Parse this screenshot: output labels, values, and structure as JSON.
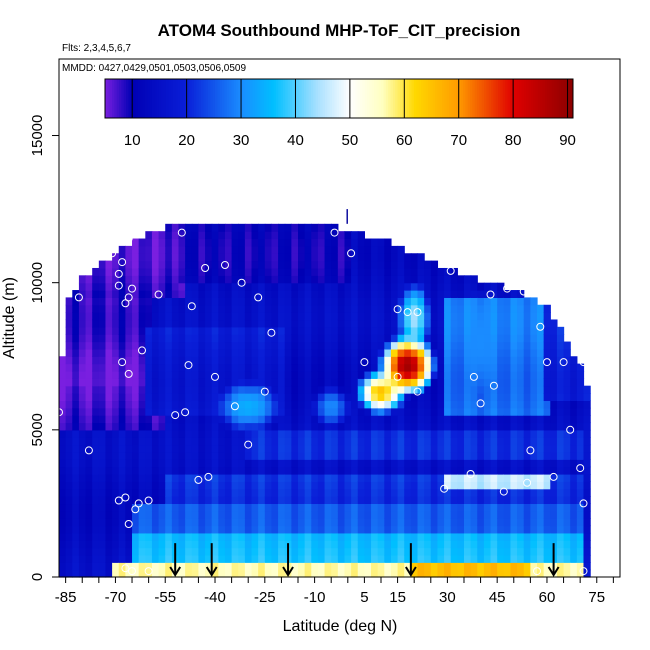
{
  "chart_data": {
    "type": "heatmap",
    "title": "ATOM4 Southbound MHP-ToF_CIT_precision",
    "flights_label": "Flts: 2,3,4,5,6,7",
    "dates_label": "MMDD: 0427,0429,0501,0503,0506,0509",
    "xlabel": "Latitude (deg N)",
    "ylabel": "Altitude (m)",
    "xlim": [
      -87,
      82
    ],
    "ylim": [
      0,
      17600
    ],
    "x_ticks": [
      -85,
      -70,
      -55,
      -40,
      -25,
      -10,
      5,
      15,
      30,
      45,
      60,
      75
    ],
    "x_tick_labels": [
      "-85",
      "-70",
      "-55",
      "-40",
      "-25",
      "-10",
      "5",
      "15",
      "30",
      "45",
      "60",
      "75"
    ],
    "x_minor_step": 5,
    "y_ticks": [
      0,
      5000,
      10000,
      15000
    ],
    "y_tick_labels": [
      "0",
      "5000",
      "10000",
      "15000"
    ],
    "colorbar": {
      "min": 5,
      "max": 91,
      "ticks": [
        10,
        20,
        30,
        40,
        50,
        60,
        70,
        80,
        90
      ],
      "tick_labels": [
        "10",
        "20",
        "30",
        "40",
        "50",
        "60",
        "70",
        "80",
        "90"
      ],
      "stops": [
        {
          "v": 5,
          "color": "#7a1fe0"
        },
        {
          "v": 10,
          "color": "#0000b4"
        },
        {
          "v": 20,
          "color": "#0a1fd8"
        },
        {
          "v": 30,
          "color": "#1a8cff"
        },
        {
          "v": 36,
          "color": "#00bfff"
        },
        {
          "v": 44,
          "color": "#a8e0ff"
        },
        {
          "v": 50,
          "color": "#ffffff"
        },
        {
          "v": 56,
          "color": "#ffffc0"
        },
        {
          "v": 62,
          "color": "#ffd800"
        },
        {
          "v": 70,
          "color": "#ff9a00"
        },
        {
          "v": 80,
          "color": "#e00000"
        },
        {
          "v": 91,
          "color": "#8b0000"
        }
      ]
    },
    "grid": {
      "lat_range": [
        -87,
        73
      ],
      "lat_step": 2,
      "alt_range": [
        0,
        12000
      ],
      "alt_step": 250,
      "envelope": [
        [
          -87,
          5800
        ],
        [
          -85,
          9200
        ],
        [
          -80,
          10200
        ],
        [
          -70,
          11000
        ],
        [
          -60,
          11700
        ],
        [
          -50,
          12000
        ],
        [
          -30,
          12000
        ],
        [
          -10,
          12000
        ],
        [
          0,
          11800
        ],
        [
          10,
          11500
        ],
        [
          20,
          11000
        ],
        [
          30,
          10500
        ],
        [
          40,
          10100
        ],
        [
          50,
          9800
        ],
        [
          60,
          9200
        ],
        [
          65,
          8200
        ],
        [
          70,
          7200
        ],
        [
          73,
          6000
        ]
      ],
      "base_value": 14,
      "layers": [
        {
          "alt": [
            0,
            400
          ],
          "lat": [
            -70,
            70
          ],
          "value": 55
        },
        {
          "alt": [
            0,
            400
          ],
          "lat": [
            20,
            55
          ],
          "value": 64
        },
        {
          "alt": [
            400,
            1500
          ],
          "lat": [
            -65,
            70
          ],
          "value": 36
        },
        {
          "alt": [
            1500,
            2600
          ],
          "lat": [
            -65,
            70
          ],
          "value": 27
        },
        {
          "alt": [
            2600,
            3600
          ],
          "lat": [
            -55,
            70
          ],
          "value": 22
        },
        {
          "alt": [
            3000,
            3400
          ],
          "lat": [
            30,
            60
          ],
          "value": 46
        },
        {
          "alt": [
            4000,
            5000
          ],
          "lat": [
            -30,
            70
          ],
          "value": 20
        },
        {
          "alt": [
            5000,
            6500
          ],
          "lat": [
            -87,
            -55
          ],
          "value": 8
        },
        {
          "alt": [
            6500,
            9500
          ],
          "lat": [
            -87,
            -60
          ],
          "value": 7
        },
        {
          "alt": [
            9500,
            12000
          ],
          "lat": [
            -87,
            -50
          ],
          "value": 8
        },
        {
          "alt": [
            10000,
            12000
          ],
          "lat": [
            -50,
            0
          ],
          "value": 11
        },
        {
          "alt": [
            5500,
            8500
          ],
          "lat": [
            -60,
            -20
          ],
          "value": 18
        },
        {
          "alt": [
            5500,
            9500
          ],
          "lat": [
            30,
            60
          ],
          "value": 28
        },
        {
          "alt": [
            6000,
            9500
          ],
          "lat": [
            60,
            73
          ],
          "value": 20
        }
      ],
      "hotspots": [
        {
          "lat": 18,
          "alt": 7200,
          "value": 88,
          "rlat": 9,
          "ralt": 1100
        },
        {
          "lat": 10,
          "alt": 6300,
          "value": 65,
          "rlat": 8,
          "ralt": 800
        },
        {
          "lat": 20,
          "alt": 8800,
          "value": 44,
          "rlat": 5,
          "ralt": 1300
        },
        {
          "lat": -30,
          "alt": 5800,
          "value": 34,
          "rlat": 10,
          "ralt": 900
        },
        {
          "lat": -5,
          "alt": 5800,
          "value": 30,
          "rlat": 6,
          "ralt": 700
        },
        {
          "lat": 40,
          "alt": 8000,
          "value": 30,
          "rlat": 6,
          "ralt": 1800
        }
      ]
    },
    "sample_points": [
      {
        "lat": -87,
        "alt": 5600
      },
      {
        "lat": -81,
        "alt": 9500
      },
      {
        "lat": -78,
        "alt": 4300
      },
      {
        "lat": -71,
        "alt": 11000
      },
      {
        "lat": -69,
        "alt": 10300
      },
      {
        "lat": -69,
        "alt": 9900
      },
      {
        "lat": -68,
        "alt": 10700
      },
      {
        "lat": -67,
        "alt": 9300
      },
      {
        "lat": -65,
        "alt": 9800
      },
      {
        "lat": -66,
        "alt": 9500
      },
      {
        "lat": -66,
        "alt": 11500
      },
      {
        "lat": -68,
        "alt": 7300
      },
      {
        "lat": -66,
        "alt": 6900
      },
      {
        "lat": -62,
        "alt": 7700
      },
      {
        "lat": -57,
        "alt": 9600
      },
      {
        "lat": -50,
        "alt": 11700
      },
      {
        "lat": -48,
        "alt": 7200
      },
      {
        "lat": -52,
        "alt": 5500
      },
      {
        "lat": -49,
        "alt": 5600
      },
      {
        "lat": -47,
        "alt": 9200
      },
      {
        "lat": -43,
        "alt": 10500
      },
      {
        "lat": -40,
        "alt": 6800
      },
      {
        "lat": -37,
        "alt": 10600
      },
      {
        "lat": -34,
        "alt": 5800
      },
      {
        "lat": -32,
        "alt": 10000
      },
      {
        "lat": -30,
        "alt": 4500
      },
      {
        "lat": -27,
        "alt": 9500
      },
      {
        "lat": -25,
        "alt": 6300
      },
      {
        "lat": -23,
        "alt": 8300
      },
      {
        "lat": -4,
        "alt": 11700
      },
      {
        "lat": 1,
        "alt": 11000
      },
      {
        "lat": 5,
        "alt": 7300
      },
      {
        "lat": 15,
        "alt": 9100
      },
      {
        "lat": 18,
        "alt": 9000
      },
      {
        "lat": 21,
        "alt": 9000
      },
      {
        "lat": 15,
        "alt": 6800
      },
      {
        "lat": 21,
        "alt": 6300
      },
      {
        "lat": 31,
        "alt": 10400
      },
      {
        "lat": 38,
        "alt": 6800
      },
      {
        "lat": 40,
        "alt": 5900
      },
      {
        "lat": 44,
        "alt": 6500
      },
      {
        "lat": 43,
        "alt": 9600
      },
      {
        "lat": 48,
        "alt": 9800
      },
      {
        "lat": 53,
        "alt": 9700
      },
      {
        "lat": 58,
        "alt": 8500
      },
      {
        "lat": 60,
        "alt": 7300
      },
      {
        "lat": 65,
        "alt": 7300
      },
      {
        "lat": 71,
        "alt": 7300
      },
      {
        "lat": 67,
        "alt": 5000
      },
      {
        "lat": 55,
        "alt": 4300
      },
      {
        "lat": 70,
        "alt": 3700
      },
      {
        "lat": 71,
        "alt": 2500
      },
      {
        "lat": 62,
        "alt": 3400
      },
      {
        "lat": 54,
        "alt": 3200
      },
      {
        "lat": 47,
        "alt": 2900
      },
      {
        "lat": 37,
        "alt": 3500
      },
      {
        "lat": 29,
        "alt": 3000
      },
      {
        "lat": -42,
        "alt": 3400
      },
      {
        "lat": -45,
        "alt": 3300
      },
      {
        "lat": -60,
        "alt": 2600
      },
      {
        "lat": -63,
        "alt": 2500
      },
      {
        "lat": -64,
        "alt": 2300
      },
      {
        "lat": -67,
        "alt": 2700
      },
      {
        "lat": -69,
        "alt": 2600
      },
      {
        "lat": -66,
        "alt": 1800
      },
      {
        "lat": -67,
        "alt": 300
      },
      {
        "lat": -65,
        "alt": 200
      },
      {
        "lat": -60,
        "alt": 200
      },
      {
        "lat": 57,
        "alt": 200
      },
      {
        "lat": 71,
        "alt": 200
      }
    ],
    "arrows_lat": [
      -52,
      -41,
      -18,
      19,
      62
    ]
  }
}
